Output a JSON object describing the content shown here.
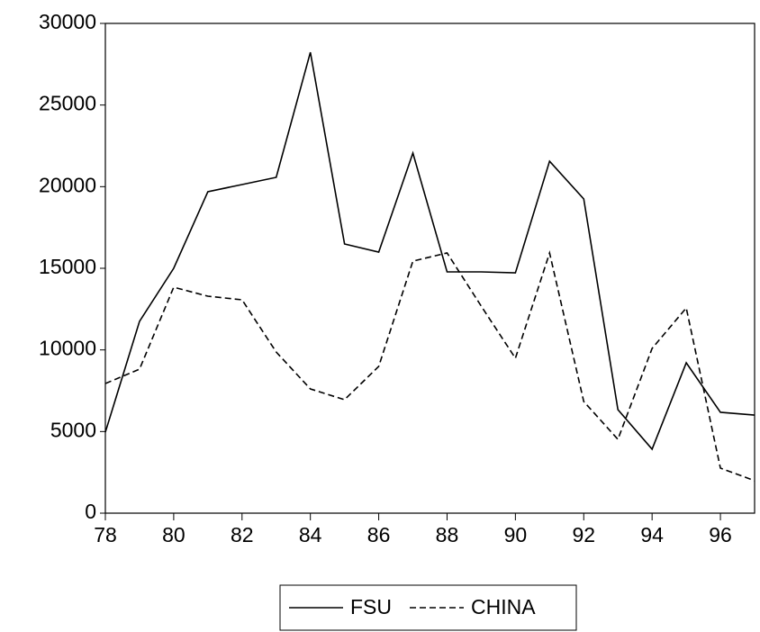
{
  "chart_data": {
    "type": "line",
    "x": [
      78,
      79,
      80,
      81,
      82,
      83,
      84,
      85,
      86,
      87,
      88,
      89,
      90,
      91,
      92,
      93,
      94,
      95,
      96,
      97
    ],
    "series": [
      {
        "name": "FSU",
        "color": "#000000",
        "dash": "solid",
        "values": [
          4960,
          11750,
          15000,
          19690,
          20130,
          20570,
          28230,
          16490,
          15990,
          22060,
          14780,
          14780,
          14720,
          21560,
          19250,
          6340,
          3920,
          9210,
          6180,
          6010
        ]
      },
      {
        "name": "CHINA",
        "color": "#000000",
        "dash": "dashed",
        "values": [
          7940,
          8820,
          13840,
          13290,
          13070,
          9870,
          7610,
          6950,
          8990,
          15440,
          15940,
          12680,
          9490,
          15940,
          6840,
          4520,
          10090,
          12570,
          2760,
          1990
        ]
      }
    ],
    "xlim": [
      78,
      97
    ],
    "xticks": [
      78,
      80,
      82,
      84,
      86,
      88,
      90,
      92,
      94,
      96
    ],
    "ylim": [
      0,
      30000
    ],
    "yticks": [
      0,
      5000,
      10000,
      15000,
      20000,
      25000,
      30000
    ],
    "legend": "bottom"
  }
}
